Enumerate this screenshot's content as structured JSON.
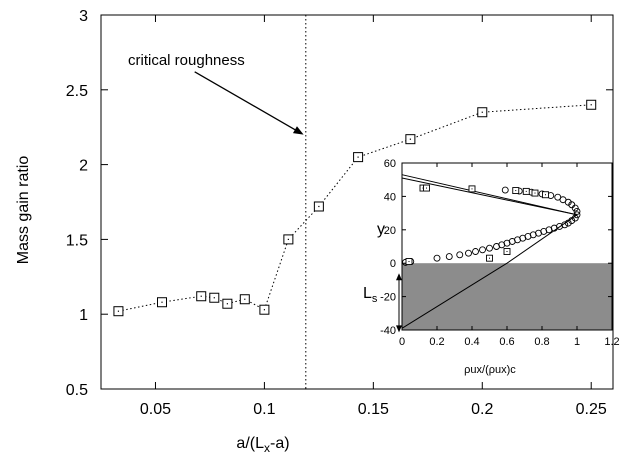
{
  "chart_data": [
    {
      "type": "line",
      "title": "",
      "xlabel": "a/(Lx-a)",
      "xlabel_main": "a/(L",
      "xlabel_sub": "x",
      "xlabel_tail": "-a)",
      "ylabel": "Mass gain ratio",
      "xlim": [
        0.025,
        0.26
      ],
      "ylim": [
        0.5,
        3
      ],
      "x_ticks": [
        0.05,
        0.1,
        0.15,
        0.2,
        0.25
      ],
      "x_tick_labels": [
        "0.05",
        "0.1",
        "0.15",
        "0.2",
        "0.25"
      ],
      "y_ticks": [
        0.5,
        1,
        1.5,
        2,
        2.5,
        3
      ],
      "y_tick_labels": [
        "0.5",
        "1",
        "1.5",
        "2",
        "2.5",
        "3"
      ],
      "grid": false,
      "series": [
        {
          "marker": "square",
          "line_style": "dotted",
          "x": [
            0.033,
            0.053,
            0.071,
            0.077,
            0.083,
            0.091,
            0.1,
            0.111,
            0.125,
            0.143,
            0.167,
            0.2,
            0.25
          ],
          "y": [
            1.02,
            1.08,
            1.12,
            1.11,
            1.07,
            1.1,
            1.03,
            1.5,
            1.72,
            2.05,
            2.17,
            2.35,
            2.4
          ]
        }
      ],
      "annotations": [
        {
          "type": "vertical-line",
          "style": "dotted",
          "x": 0.119
        },
        {
          "type": "text-arrow",
          "text": "critical roughness",
          "from": [
            0.068,
            2.62
          ],
          "to": [
            0.118,
            2.2
          ]
        }
      ]
    },
    {
      "type": "line",
      "title": "",
      "inset": true,
      "xlabel": "ρux/(ρux)c",
      "ylabel": "y",
      "xlim": [
        0,
        1.2
      ],
      "ylim": [
        -40,
        60
      ],
      "x_ticks": [
        0,
        0.2,
        0.4,
        0.6,
        0.8,
        1,
        1.2
      ],
      "x_tick_labels": [
        "0",
        "0.2",
        "0.4",
        "0.6",
        "0.8",
        "1",
        "1.2"
      ],
      "y_ticks": [
        -40,
        -20,
        0,
        20,
        40,
        60
      ],
      "y_tick_labels": [
        "-40",
        "-20",
        "0",
        "20",
        "40",
        "60"
      ],
      "shaded_region": {
        "y_from": -40,
        "y_to": 0,
        "color": "#8c8c8c"
      },
      "Ls_label": "L",
      "Ls_sub": "s",
      "series": [
        {
          "kind": "circles",
          "x": [
            0.02,
            0.05,
            0.2,
            0.27,
            0.33,
            0.38,
            0.42,
            0.46,
            0.5,
            0.54,
            0.57,
            0.6,
            0.63,
            0.66,
            0.69,
            0.72,
            0.75,
            0.78,
            0.81,
            0.84,
            0.87,
            0.9,
            0.93,
            0.95,
            0.97,
            0.99,
            1.0,
            1.0,
            0.99,
            0.97,
            0.95,
            0.92,
            0.89,
            0.85,
            0.8,
            0.74,
            0.67,
            0.59
          ],
          "y": [
            0.5,
            1,
            3,
            4,
            5,
            6,
            7,
            8,
            9,
            10,
            11,
            12,
            13,
            14,
            15,
            16,
            17,
            18,
            19,
            20,
            21,
            22,
            23,
            24,
            25.5,
            27,
            29,
            31,
            33,
            35,
            36.5,
            38,
            39.5,
            40.5,
            41.5,
            42.5,
            43.2,
            43.8
          ]
        },
        {
          "kind": "squares",
          "x": [
            0.04,
            0.12,
            0.14,
            0.4,
            0.5,
            0.6,
            0.65,
            0.71,
            0.76,
            0.82
          ],
          "y": [
            1,
            45,
            45,
            44.5,
            3,
            7,
            43.5,
            43,
            42,
            41
          ]
        },
        {
          "kind": "line",
          "x": [
            0,
            0.6,
            1.0
          ],
          "y": [
            -39,
            0,
            29
          ]
        },
        {
          "kind": "line",
          "x": [
            0,
            1.0
          ],
          "y": [
            53,
            29
          ]
        },
        {
          "kind": "line",
          "x": [
            0,
            1.0
          ],
          "y": [
            51,
            29
          ]
        }
      ]
    }
  ],
  "annotation_text": "critical roughness"
}
